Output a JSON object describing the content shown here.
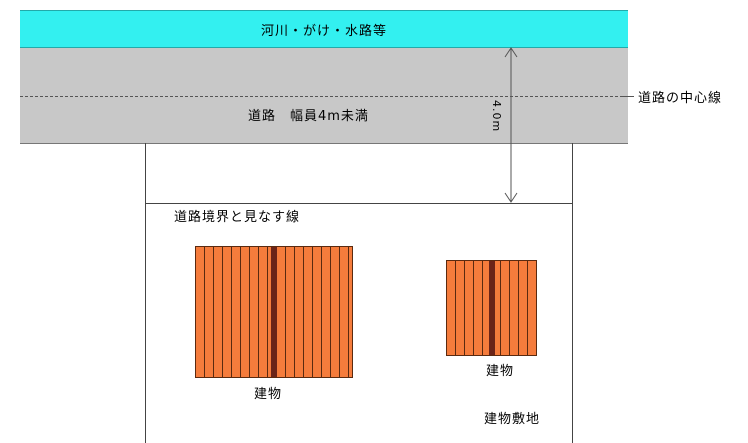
{
  "river": {
    "label": "河川・がけ・水路等",
    "color": "#33f0f0"
  },
  "road": {
    "label": "道路　幅員4m未満",
    "color": "#c8c8c8"
  },
  "centerline": {
    "label": "道路の中心線"
  },
  "dimension": {
    "label": "4.0m"
  },
  "boundary": {
    "label": "道路境界と見なす線"
  },
  "buildings": [
    {
      "label": "建物",
      "color": "#f57c3c"
    },
    {
      "label": "建物",
      "color": "#f57c3c"
    }
  ],
  "site": {
    "label": "建物敷地"
  }
}
